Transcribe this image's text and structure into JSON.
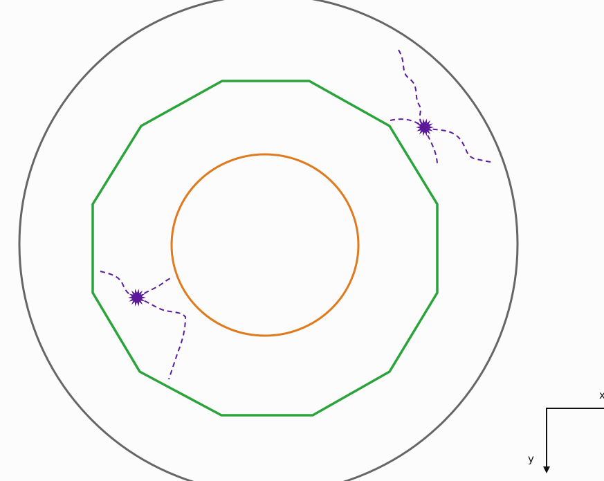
{
  "diagram": {
    "shapes": [
      {
        "name": "outer-circle",
        "color": "#666666"
      },
      {
        "name": "dodecagon",
        "color": "#2aa33a"
      },
      {
        "name": "inner-circle",
        "color": "#e07a1e"
      }
    ],
    "particles": [
      {
        "name": "particle-top-right",
        "color": "#5a1a9a"
      },
      {
        "name": "particle-bottom-left",
        "color": "#5a1a9a"
      }
    ],
    "axes": {
      "x_label": "x",
      "y_label": "y",
      "color": "#111111"
    }
  }
}
